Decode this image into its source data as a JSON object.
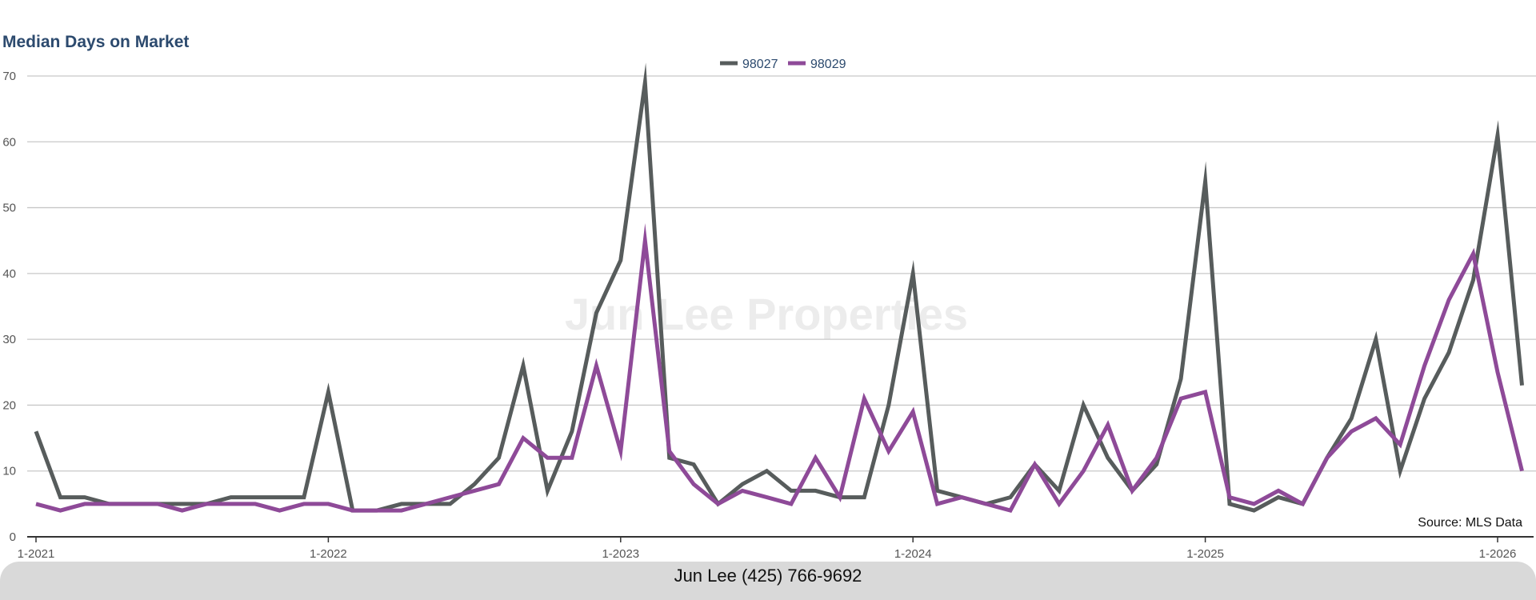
{
  "chart_data": {
    "type": "line",
    "title": "Median Days on Market",
    "xlabel": "",
    "ylabel": "",
    "ylim": [
      0,
      70
    ],
    "yticks": [
      0,
      10,
      20,
      30,
      40,
      50,
      60,
      70
    ],
    "xticks": [
      "1-2021",
      "1-2022",
      "1-2023",
      "1-2024",
      "1-2025",
      "1-2026"
    ],
    "x_start": "1-2021",
    "x_end": "2-2026",
    "grid": true,
    "legend_position": "top-center",
    "source": "Source: MLS Data",
    "watermark": "Jun Lee Properties",
    "series": [
      {
        "name": "98027",
        "color": "#575c5c",
        "values": [
          16,
          6,
          6,
          5,
          5,
          5,
          5,
          5,
          6,
          6,
          6,
          6,
          22,
          4,
          4,
          5,
          5,
          5,
          8,
          12,
          26,
          7,
          16,
          34,
          42,
          69,
          12,
          11,
          5,
          8,
          10,
          7,
          7,
          6,
          6,
          20,
          40,
          7,
          6,
          5,
          6,
          11,
          7,
          20,
          12,
          7,
          11,
          24,
          54,
          5,
          4,
          6,
          5,
          12,
          18,
          30,
          10,
          21,
          28,
          39,
          61,
          23
        ]
      },
      {
        "name": "98029",
        "color": "#8e4a98",
        "values": [
          5,
          4,
          5,
          5,
          5,
          5,
          4,
          5,
          5,
          5,
          4,
          5,
          5,
          4,
          4,
          4,
          5,
          6,
          7,
          8,
          15,
          12,
          12,
          26,
          13,
          45,
          13,
          8,
          5,
          7,
          6,
          5,
          12,
          6,
          21,
          13,
          19,
          5,
          6,
          5,
          4,
          11,
          5,
          10,
          17,
          7,
          12,
          21,
          22,
          6,
          5,
          7,
          5,
          12,
          16,
          18,
          14,
          26,
          36,
          43,
          25,
          10
        ]
      }
    ]
  },
  "footer": {
    "contact": "Jun Lee (425) 766-9692"
  }
}
